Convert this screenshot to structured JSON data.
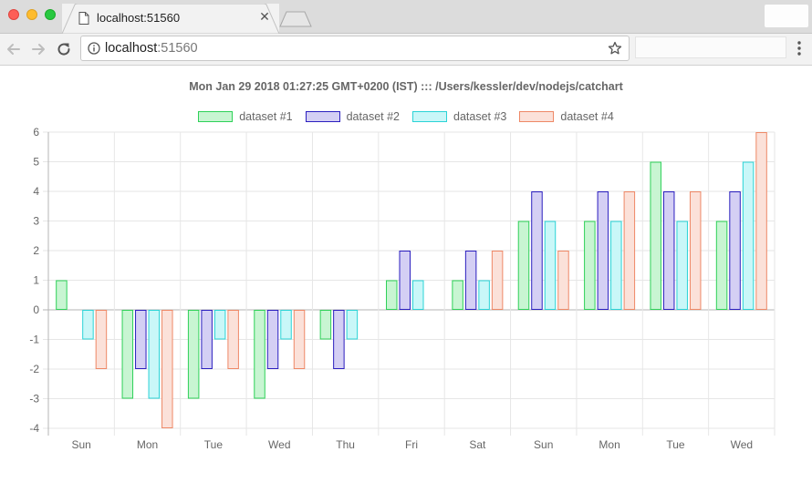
{
  "browser": {
    "tab_title": "localhost:51560",
    "url_host": "localhost",
    "url_port": ":51560",
    "tab_close_glyph": "✕"
  },
  "icons": [
    "document-icon",
    "close-icon",
    "back-arrow-icon",
    "forward-arrow-icon",
    "reload-icon",
    "info-icon",
    "star-icon",
    "menu-dots-icon"
  ],
  "chart_data": {
    "type": "bar",
    "title": "Mon Jan 29 2018 01:27:25 GMT+0200 (IST) ::: /Users/kessler/dev/nodejs/catchart",
    "categories": [
      "Sun",
      "Mon",
      "Tue",
      "Wed",
      "Thu",
      "Fri",
      "Sat",
      "Sun",
      "Mon",
      "Tue",
      "Wed"
    ],
    "y_ticks": [
      "6",
      "5",
      "4",
      "3",
      "2",
      "1",
      "0",
      "-1",
      "-2",
      "-3",
      "-4"
    ],
    "ylim": [
      -4,
      6
    ],
    "grid": true,
    "legend_position": "top-center",
    "series": [
      {
        "name": "dataset #1",
        "values": [
          1,
          -3,
          -3,
          -3,
          -1,
          1,
          1,
          3,
          3,
          5,
          3
        ],
        "fill": "#c8f5d2",
        "stroke": "#2ed158"
      },
      {
        "name": "dataset #2",
        "values": [
          0,
          -2,
          -2,
          -2,
          -2,
          2,
          2,
          4,
          4,
          4,
          4
        ],
        "fill": "#d4cff4",
        "stroke": "#2b1fbf"
      },
      {
        "name": "dataset #3",
        "values": [
          -1,
          -3,
          -1,
          -1,
          -1,
          1,
          1,
          3,
          3,
          3,
          5
        ],
        "fill": "#c9f7f8",
        "stroke": "#2ad3d6"
      },
      {
        "name": "dataset #4",
        "values": [
          -2,
          -4,
          -2,
          -2,
          0,
          0,
          2,
          2,
          4,
          4,
          6
        ],
        "fill": "#fbe1d9",
        "stroke": "#ee8866"
      }
    ]
  }
}
